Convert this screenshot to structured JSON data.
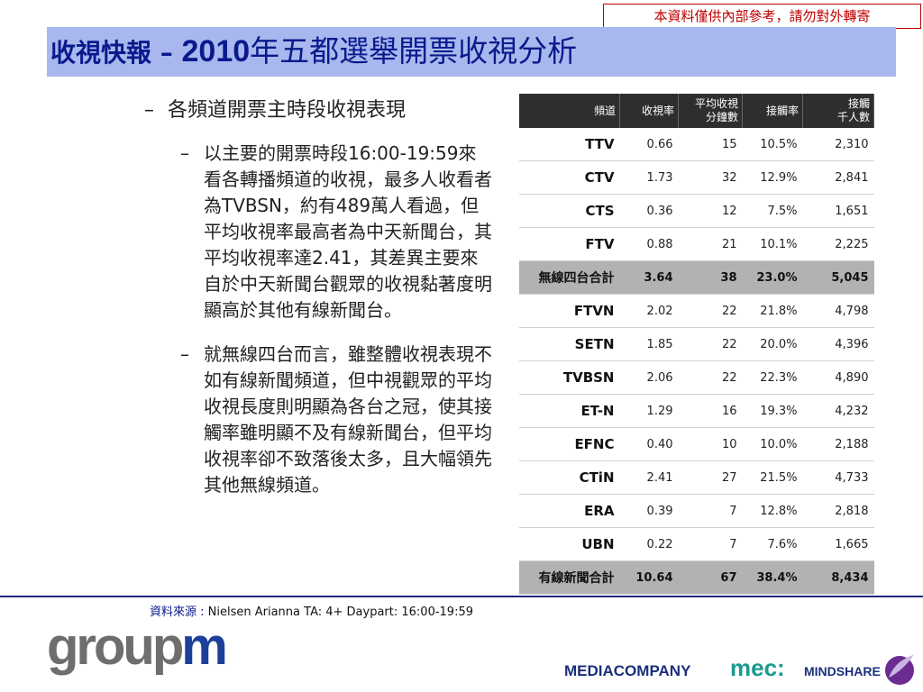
{
  "notice": "本資料僅供內部參考，請勿對外轉寄",
  "title": {
    "prefix": "收視快報 – ",
    "year": "2010",
    "suffix": "年五都選舉開票收視分析"
  },
  "bullets": {
    "main": "各頻道開票主時段收視表現",
    "sub": [
      "以主要的開票時段16:00-19:59來看各轉播頻道的收視，最多人收看者為TVBSN，約有489萬人看過，但平均收視率最高者為中天新聞台，其平均收視率達2.41，其差異主要來自於中天新聞台觀眾的收視黏著度明顯高於其他有線新聞台。",
      "就無線四台而言，雖整體收視表現不如有線新聞頻道，但中視觀眾的平均收視長度則明顯為各台之冠，使其接觸率雖明顯不及有線新聞台，但平均收視率卻不致落後太多，且大幅領先其他無線頻道。"
    ]
  },
  "table": {
    "headers": [
      "頻道",
      "收視率",
      "平均收視\n分鐘數",
      "接觸率",
      "接觸\n千人數"
    ],
    "rows": [
      {
        "channel": "TTV",
        "rating": "0.66",
        "minutes": "15",
        "reach": "10.5%",
        "reach_k": "2,310"
      },
      {
        "channel": "CTV",
        "rating": "1.73",
        "minutes": "32",
        "reach": "12.9%",
        "reach_k": "2,841"
      },
      {
        "channel": "CTS",
        "rating": "0.36",
        "minutes": "12",
        "reach": "7.5%",
        "reach_k": "1,651"
      },
      {
        "channel": "FTV",
        "rating": "0.88",
        "minutes": "21",
        "reach": "10.1%",
        "reach_k": "2,225"
      },
      {
        "channel": "無線四台合計",
        "rating": "3.64",
        "minutes": "38",
        "reach": "23.0%",
        "reach_k": "5,045",
        "total": true
      },
      {
        "channel": "FTVN",
        "rating": "2.02",
        "minutes": "22",
        "reach": "21.8%",
        "reach_k": "4,798"
      },
      {
        "channel": "SETN",
        "rating": "1.85",
        "minutes": "22",
        "reach": "20.0%",
        "reach_k": "4,396"
      },
      {
        "channel": "TVBSN",
        "rating": "2.06",
        "minutes": "22",
        "reach": "22.3%",
        "reach_k": "4,890"
      },
      {
        "channel": "ET-N",
        "rating": "1.29",
        "minutes": "16",
        "reach": "19.3%",
        "reach_k": "4,232"
      },
      {
        "channel": "EFNC",
        "rating": "0.40",
        "minutes": "10",
        "reach": "10.0%",
        "reach_k": "2,188"
      },
      {
        "channel": "CTiN",
        "rating": "2.41",
        "minutes": "27",
        "reach": "21.5%",
        "reach_k": "4,733"
      },
      {
        "channel": "ERA",
        "rating": "0.39",
        "minutes": "7",
        "reach": "12.8%",
        "reach_k": "2,818"
      },
      {
        "channel": "UBN",
        "rating": "0.22",
        "minutes": "7",
        "reach": "7.6%",
        "reach_k": "1,665"
      },
      {
        "channel": "有線新聞合計",
        "rating": "10.64",
        "minutes": "67",
        "reach": "38.4%",
        "reach_k": "8,434",
        "total": true
      }
    ]
  },
  "source": {
    "label": "資料來源 : ",
    "value": "Nielsen Arianna TA: 4+ Daypart: 16:00-19:59"
  },
  "logos": {
    "groupm_a": "group",
    "groupm_b": "m",
    "mediacompany": "MEDIACOMPANY",
    "mec": "mec:",
    "mindshare": "MINDSHARE"
  },
  "colors": {
    "title_bar": "#a8b8ee",
    "title_text": "#0a1a8c",
    "notice": "#c00000",
    "total_row": "#b2b2b2",
    "header_row": "#2e2e2e"
  }
}
